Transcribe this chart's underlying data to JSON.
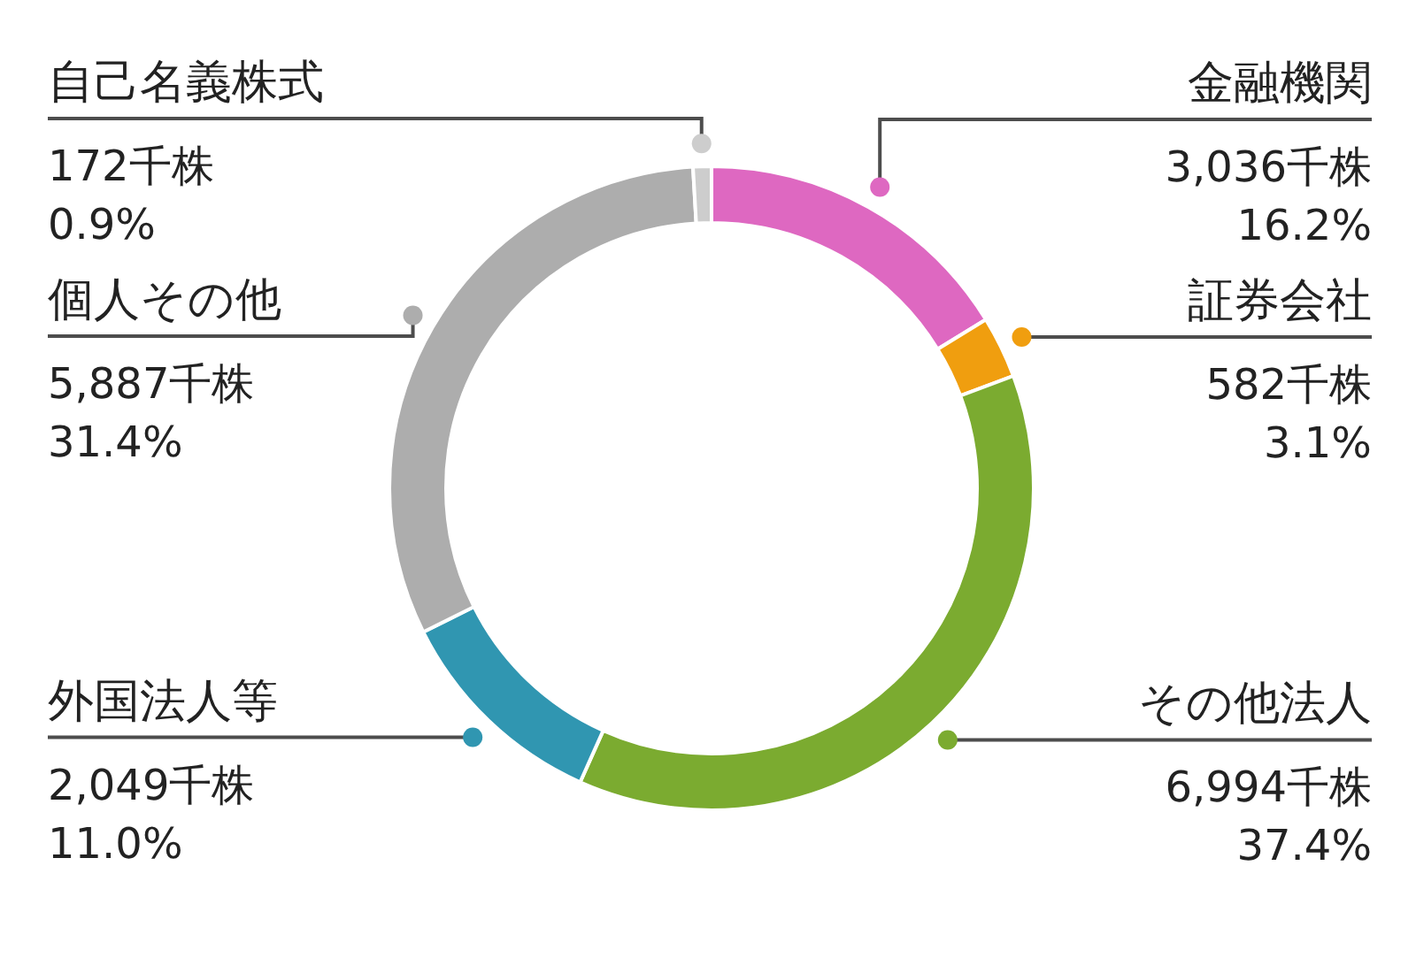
{
  "chart_data": {
    "type": "donut",
    "categories": [
      "金融機関",
      "証券会社",
      "その他法人",
      "外国法人等",
      "個人その他",
      "自己名義株式"
    ],
    "values": [
      3036,
      582,
      6994,
      2049,
      5887,
      172
    ],
    "colors": [
      "#de68c1",
      "#f09e0f",
      "#7bab30",
      "#3096b1",
      "#adadad",
      "#cdcdcd"
    ],
    "value_labels": [
      "3,036千株\n16.2%",
      "582千株\n3.1%",
      "6,994千株\n37.4%",
      "2,049千株\n11.0%",
      "5,887千株\n31.4%",
      "172千株\n0.9%"
    ]
  }
}
